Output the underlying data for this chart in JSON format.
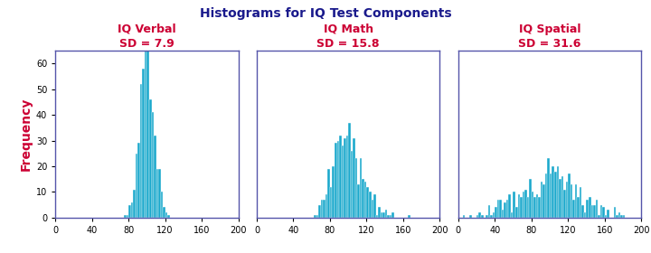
{
  "title": "Histograms for IQ Test Components",
  "title_color": "#1a1a8c",
  "title_fontsize": 10,
  "title_bold": false,
  "ylabel": "Frequency",
  "ylabel_color": "#CC0033",
  "ylabel_fontsize": 10,
  "xlim": [
    0,
    200
  ],
  "xticks": [
    0,
    40,
    80,
    120,
    160,
    200
  ],
  "bar_color": "#1aA8CC",
  "subplots": [
    {
      "label_line1": "IQ Verbal",
      "label_line2": "SD = 7.9",
      "mean": 100,
      "sd": 7.9,
      "skew": 0.8,
      "ylim": [
        0,
        65
      ],
      "yticks": [
        0,
        10,
        20,
        30,
        40,
        50,
        60
      ]
    },
    {
      "label_line1": "IQ Math",
      "label_line2": "SD = 15.8",
      "mean": 100,
      "sd": 15.8,
      "skew": 0.5,
      "ylim": [
        0,
        65
      ],
      "yticks": [
        0,
        10,
        20,
        30,
        40,
        50,
        60
      ]
    },
    {
      "label_line1": "IQ Spatial",
      "label_line2": "SD = 31.6",
      "mean": 100,
      "sd": 31.6,
      "skew": 0.3,
      "ylim": [
        0,
        65
      ],
      "yticks": [
        0,
        10,
        20,
        30,
        40,
        50,
        60
      ]
    }
  ],
  "n_samples": 500,
  "seed": 15,
  "bins": 80,
  "label_color": "#CC0033",
  "label_fontsize": 9,
  "ax_edge_color": "#5555AA",
  "tick_fontsize": 7,
  "background_color": "#FFFFFF"
}
